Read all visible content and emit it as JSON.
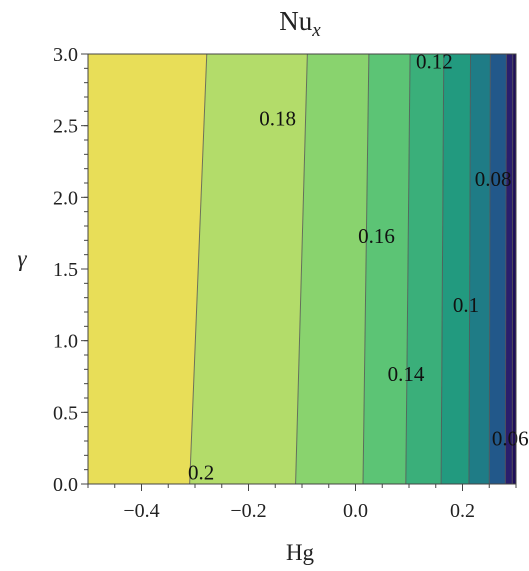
{
  "chart_data": {
    "type": "contour",
    "title": "Nu",
    "title_subscript": "x",
    "xlabel": "Hg",
    "ylabel": "γ",
    "xlim": [
      -0.5,
      0.3
    ],
    "ylim": [
      0.0,
      3.0
    ],
    "x_ticks": [
      {
        "value": -0.4,
        "label": "−0.4"
      },
      {
        "value": -0.2,
        "label": "−0.2"
      },
      {
        "value": 0.0,
        "label": "0.0"
      },
      {
        "value": 0.2,
        "label": "0.2"
      }
    ],
    "y_ticks": [
      {
        "value": 0.0,
        "label": "0.0"
      },
      {
        "value": 0.5,
        "label": "0.5"
      },
      {
        "value": 1.0,
        "label": "1.0"
      },
      {
        "value": 1.5,
        "label": "1.5"
      },
      {
        "value": 2.0,
        "label": "2.0"
      },
      {
        "value": 2.5,
        "label": "2.5"
      },
      {
        "value": 3.0,
        "label": "3.0"
      }
    ],
    "contour_lines": [
      {
        "level": 0.2,
        "x_at_y0": -0.31,
        "x_at_y3": -0.278
      },
      {
        "level": 0.18,
        "x_at_y0": -0.112,
        "x_at_y3": -0.09
      },
      {
        "level": 0.16,
        "x_at_y0": 0.014,
        "x_at_y3": 0.025
      },
      {
        "level": 0.14,
        "x_at_y0": 0.094,
        "x_at_y3": 0.102
      },
      {
        "level": 0.12,
        "x_at_y0": 0.16,
        "x_at_y3": 0.165
      },
      {
        "level": 0.1,
        "x_at_y0": 0.212,
        "x_at_y3": 0.215
      },
      {
        "level": 0.08,
        "x_at_y0": 0.25,
        "x_at_y3": 0.252
      },
      {
        "level": 0.06,
        "x_at_y0": 0.28,
        "x_at_y3": 0.282
      },
      {
        "level": 0.04,
        "x_at_y0": 0.293,
        "x_at_y3": 0.294
      }
    ],
    "band_colors": [
      "#e8de58",
      "#b3dc6a",
      "#89d36e",
      "#5cc475",
      "#3aaf7a",
      "#229a7f",
      "#1f7c86",
      "#22588a",
      "#2a1e6c",
      "#1e0e5a"
    ],
    "contour_labels": [
      {
        "text": "0.2",
        "x": -0.313,
        "y": 0.03
      },
      {
        "text": "0.18",
        "x": -0.18,
        "y": 2.5
      },
      {
        "text": "0.16",
        "x": 0.005,
        "y": 1.68
      },
      {
        "text": "0.14",
        "x": 0.06,
        "y": 0.72
      },
      {
        "text": "0.12",
        "x": 0.113,
        "y": 2.9
      },
      {
        "text": "0.1",
        "x": 0.182,
        "y": 1.2
      },
      {
        "text": "0.08",
        "x": 0.223,
        "y": 2.08
      },
      {
        "text": "0.06",
        "x": 0.255,
        "y": 0.27
      }
    ],
    "grid": false,
    "line_color": "#555555"
  }
}
